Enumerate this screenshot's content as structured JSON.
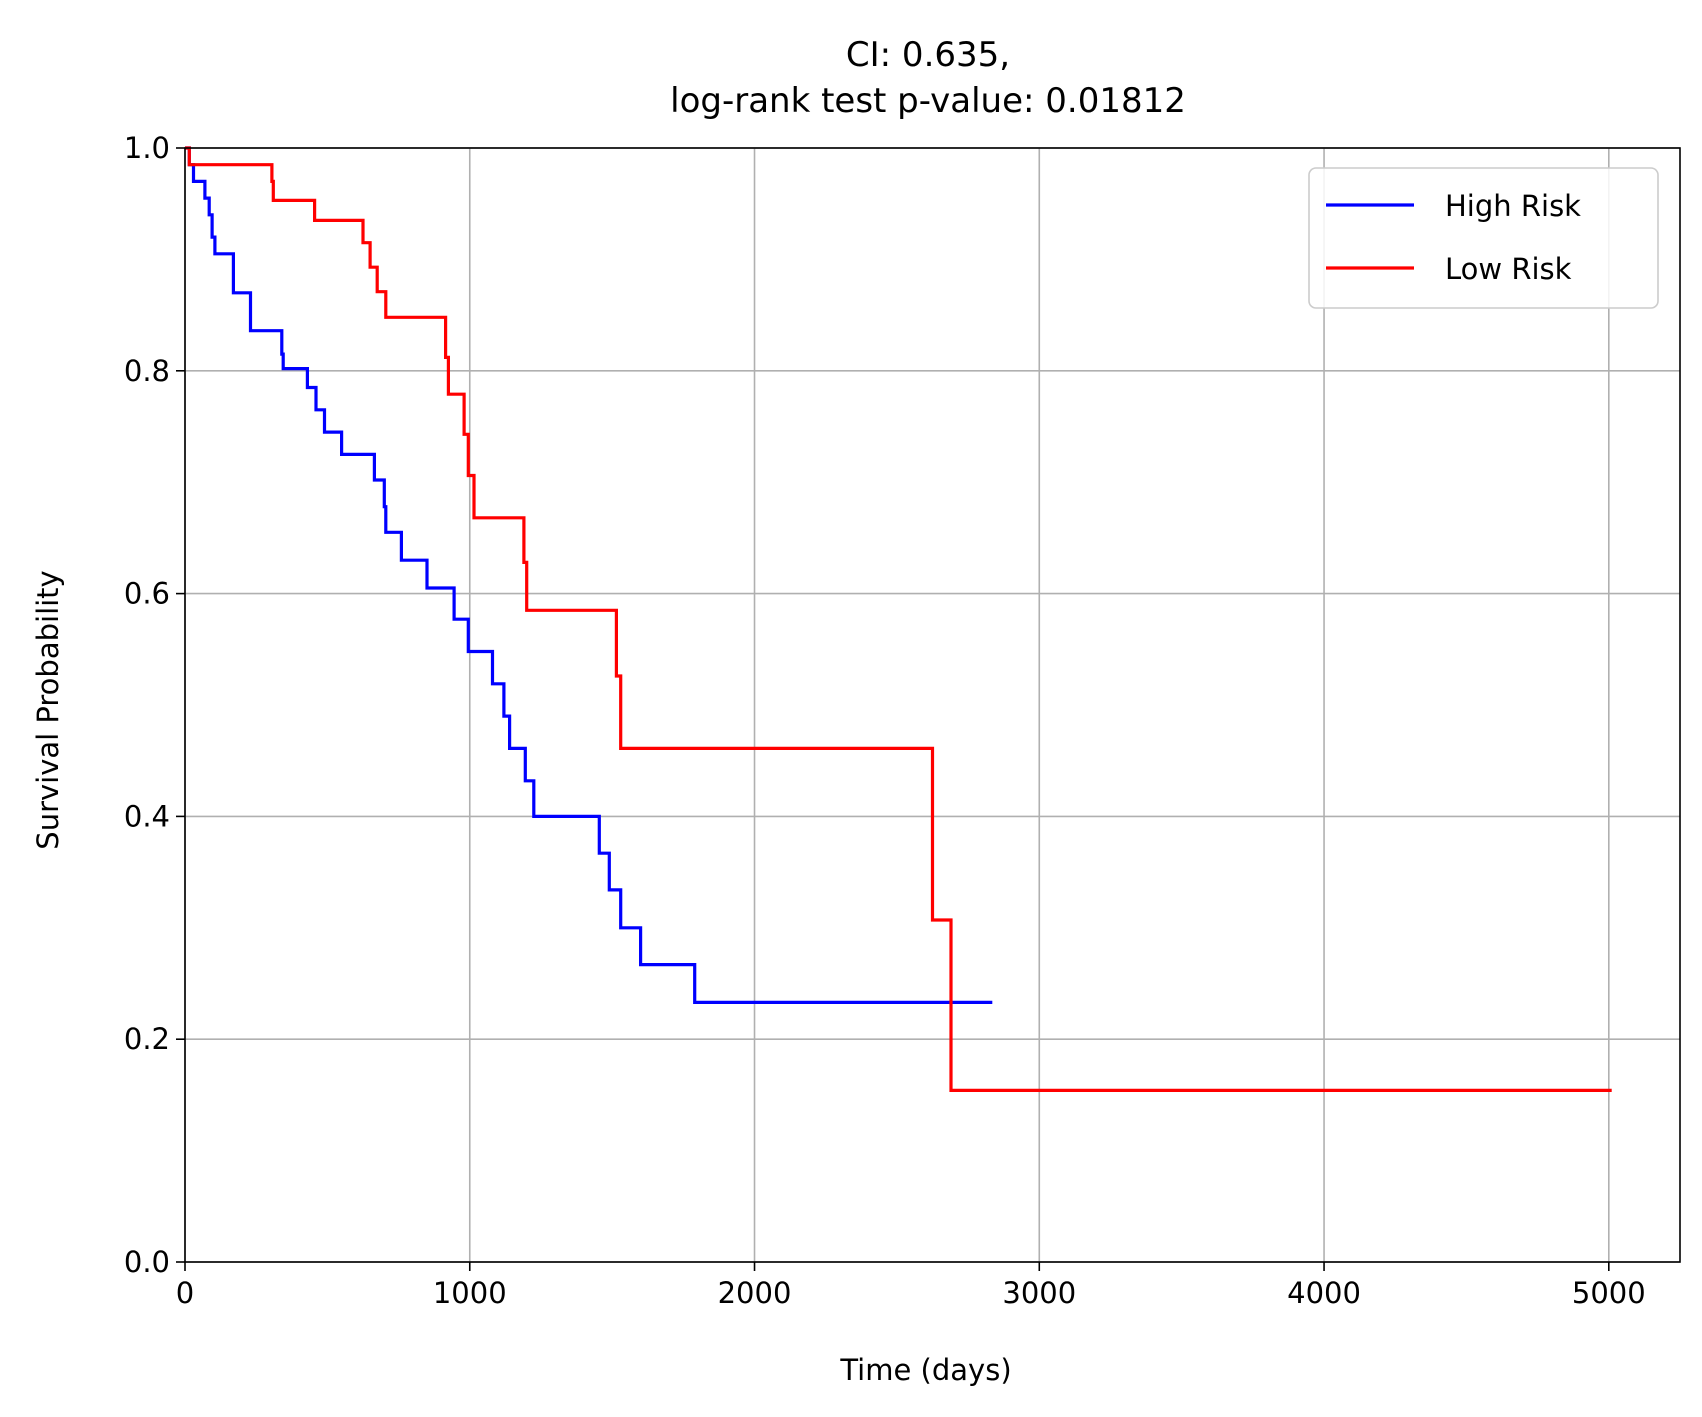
{
  "chart_data": {
    "type": "line",
    "step": "post",
    "title_lines": [
      "CI: 0.635,",
      "log-rank test p-value: 0.01812"
    ],
    "xlabel": "Time (days)",
    "ylabel": "Survival Probability",
    "xlim": [
      0,
      5250
    ],
    "ylim": [
      0,
      1
    ],
    "xticks": [
      0,
      1000,
      2000,
      3000,
      4000,
      5000
    ],
    "xtick_labels": [
      "0",
      "1000",
      "2000",
      "3000",
      "4000",
      "5000"
    ],
    "yticks": [
      0.0,
      0.2,
      0.4,
      0.6,
      0.8,
      1.0
    ],
    "ytick_labels": [
      "0.0",
      "0.2",
      "0.4",
      "0.6",
      "0.8",
      "1.0"
    ],
    "grid": true,
    "legend_position": "top-right",
    "series": [
      {
        "name": "High Risk",
        "color": "#0000ff",
        "x": [
          0,
          15,
          30,
          70,
          85,
          95,
          105,
          170,
          230,
          340,
          345,
          430,
          460,
          490,
          550,
          665,
          700,
          705,
          760,
          850,
          945,
          995,
          1080,
          1120,
          1140,
          1195,
          1225,
          1455,
          1490,
          1530,
          1600,
          1790,
          2835
        ],
        "y": [
          1.0,
          0.985,
          0.97,
          0.955,
          0.94,
          0.92,
          0.905,
          0.87,
          0.836,
          0.815,
          0.802,
          0.785,
          0.765,
          0.745,
          0.725,
          0.702,
          0.678,
          0.655,
          0.63,
          0.605,
          0.577,
          0.548,
          0.519,
          0.49,
          0.461,
          0.432,
          0.4,
          0.367,
          0.334,
          0.3,
          0.267,
          0.233,
          0.233
        ]
      },
      {
        "name": "Low Risk",
        "color": "#ff0000",
        "x": [
          0,
          15,
          305,
          310,
          455,
          625,
          650,
          675,
          705,
          735,
          915,
          925,
          980,
          995,
          1015,
          1190,
          1200,
          1215,
          1515,
          1525,
          1530,
          2625,
          2690,
          5010
        ],
        "y": [
          1.0,
          0.985,
          0.97,
          0.953,
          0.935,
          0.915,
          0.893,
          0.871,
          0.848,
          0.848,
          0.812,
          0.779,
          0.743,
          0.706,
          0.668,
          0.628,
          0.585,
          0.585,
          0.526,
          0.526,
          0.461,
          0.307,
          0.154,
          0.154
        ]
      }
    ]
  }
}
